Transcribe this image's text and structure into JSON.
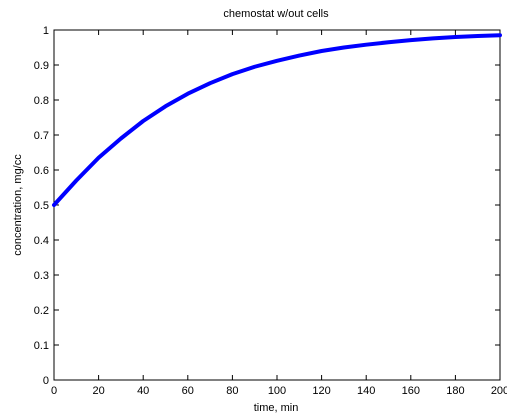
{
  "chart_data": {
    "type": "line",
    "title": "chemostat w/out cells",
    "xlabel": "time, min",
    "ylabel": "concentration, mg/cc",
    "xlim": [
      0,
      200
    ],
    "ylim": [
      0,
      1
    ],
    "xticks": [
      0,
      20,
      40,
      60,
      80,
      100,
      120,
      140,
      160,
      180,
      200
    ],
    "yticks": [
      0,
      0.1,
      0.2,
      0.3,
      0.4,
      0.5,
      0.6,
      0.7,
      0.8,
      0.9,
      1
    ],
    "xtick_labels": [
      "0",
      "20",
      "40",
      "60",
      "80",
      "100",
      "120",
      "140",
      "160",
      "180",
      "200"
    ],
    "ytick_labels": [
      "0",
      "0.1",
      "0.2",
      "0.3",
      "0.4",
      "0.5",
      "0.6",
      "0.7",
      "0.8",
      "0.9",
      "1"
    ],
    "grid": false,
    "series": [
      {
        "color": "#0000ff",
        "x": [
          0,
          10,
          20,
          30,
          40,
          50,
          60,
          70,
          80,
          90,
          100,
          110,
          120,
          130,
          140,
          150,
          160,
          170,
          180,
          190,
          200
        ],
        "y": [
          0.5,
          0.57,
          0.635,
          0.69,
          0.74,
          0.782,
          0.818,
          0.848,
          0.874,
          0.895,
          0.912,
          0.927,
          0.94,
          0.95,
          0.958,
          0.965,
          0.971,
          0.976,
          0.98,
          0.983,
          0.985
        ]
      }
    ]
  }
}
